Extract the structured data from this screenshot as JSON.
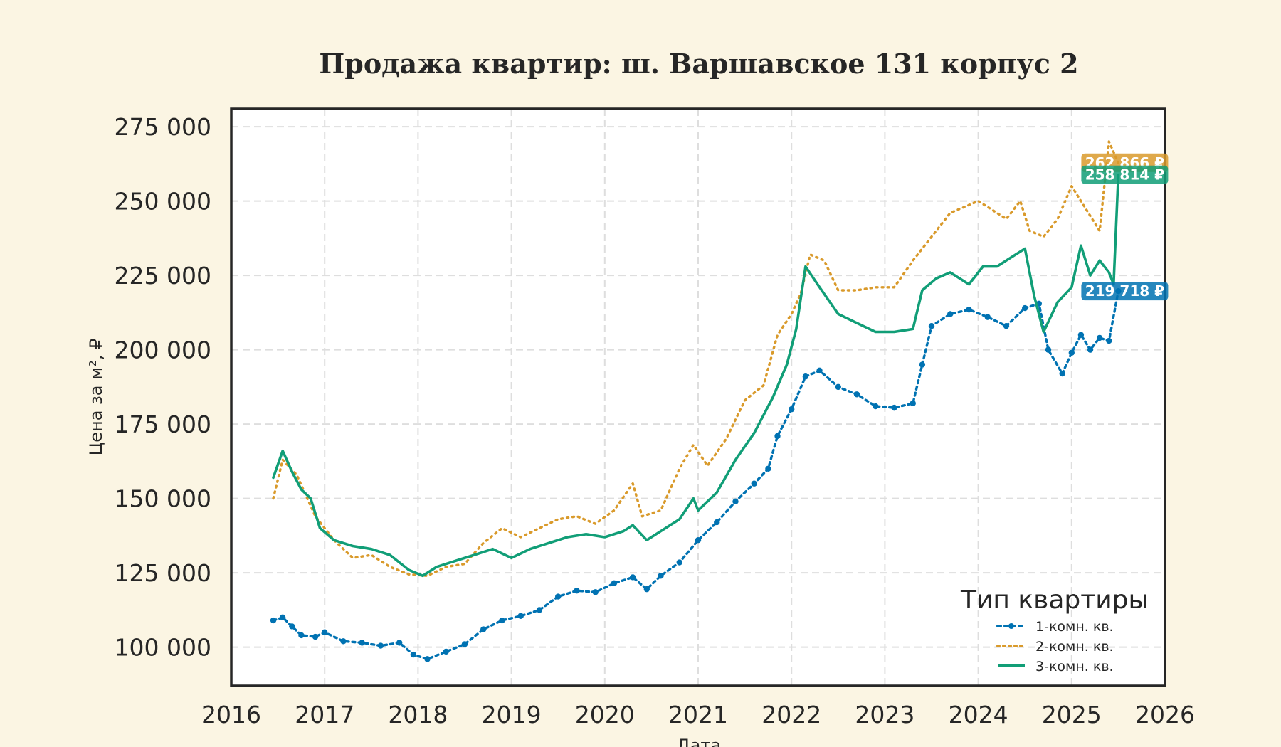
{
  "chart_data": {
    "type": "line",
    "title": "Продажа квартир: ш. Варшавское 131 корпус 2",
    "xlabel": "Дата",
    "ylabel": "Цена за м², ₽",
    "xlim": [
      2016.0,
      2026.0
    ],
    "ylim": [
      87000,
      281000
    ],
    "x_ticks": [
      2016,
      2017,
      2018,
      2019,
      2020,
      2021,
      2022,
      2023,
      2024,
      2025,
      2026
    ],
    "x_tick_labels": [
      "2016",
      "2017",
      "2018",
      "2019",
      "2020",
      "2021",
      "2022",
      "2023",
      "2024",
      "2025",
      "2026"
    ],
    "y_ticks": [
      100000,
      125000,
      150000,
      175000,
      200000,
      225000,
      250000,
      275000
    ],
    "y_tick_labels": [
      "100 000",
      "125 000",
      "150 000",
      "175 000",
      "200 000",
      "225 000",
      "250 000",
      "275 000"
    ],
    "grid": true,
    "legend": {
      "title": "Тип квартиры",
      "placement": "lower-right"
    },
    "series": [
      {
        "name": "1-комн. кв.",
        "color": "#0072b2",
        "style": "dotted-markers",
        "end_label": "219 718 ₽",
        "end_label_value": 219718,
        "x": [
          2016.45,
          2016.55,
          2016.65,
          2016.75,
          2016.9,
          2017.0,
          2017.2,
          2017.4,
          2017.6,
          2017.8,
          2017.95,
          2018.1,
          2018.3,
          2018.5,
          2018.7,
          2018.9,
          2019.1,
          2019.3,
          2019.5,
          2019.7,
          2019.9,
          2020.1,
          2020.3,
          2020.45,
          2020.6,
          2020.8,
          2021.0,
          2021.2,
          2021.4,
          2021.6,
          2021.75,
          2021.85,
          2022.0,
          2022.15,
          2022.3,
          2022.5,
          2022.7,
          2022.9,
          2023.1,
          2023.3,
          2023.4,
          2023.5,
          2023.7,
          2023.9,
          2024.1,
          2024.3,
          2024.5,
          2024.65,
          2024.75,
          2024.9,
          2025.0,
          2025.1,
          2025.2,
          2025.3,
          2025.4,
          2025.5
        ],
        "values": [
          109000,
          110000,
          107000,
          104000,
          103500,
          105000,
          102000,
          101500,
          100500,
          101500,
          97500,
          96000,
          98500,
          101000,
          106000,
          109000,
          110500,
          112500,
          117000,
          119000,
          118500,
          121500,
          123500,
          119500,
          124000,
          128500,
          136000,
          142000,
          149000,
          155000,
          160000,
          171000,
          180000,
          191000,
          193000,
          187500,
          185000,
          181000,
          180500,
          182000,
          195000,
          208000,
          212000,
          213500,
          211000,
          208000,
          214000,
          215500,
          200000,
          192000,
          199000,
          205000,
          200000,
          204000,
          203000,
          219718
        ]
      },
      {
        "name": "2-комн. кв.",
        "color": "#d99a2b",
        "style": "dotted",
        "end_label": "262 866 ₽",
        "end_label_value": 262866,
        "x": [
          2016.45,
          2016.55,
          2016.7,
          2016.9,
          2017.1,
          2017.3,
          2017.5,
          2017.7,
          2017.9,
          2018.1,
          2018.3,
          2018.5,
          2018.7,
          2018.9,
          2019.1,
          2019.3,
          2019.5,
          2019.7,
          2019.9,
          2020.1,
          2020.3,
          2020.4,
          2020.6,
          2020.8,
          2020.95,
          2021.1,
          2021.3,
          2021.5,
          2021.7,
          2021.85,
          2022.0,
          2022.1,
          2022.2,
          2022.35,
          2022.5,
          2022.7,
          2022.9,
          2023.1,
          2023.3,
          2023.5,
          2023.7,
          2023.85,
          2024.0,
          2024.15,
          2024.3,
          2024.45,
          2024.55,
          2024.7,
          2024.85,
          2025.0,
          2025.1,
          2025.2,
          2025.3,
          2025.4,
          2025.5
        ],
        "values": [
          150000,
          163000,
          158000,
          144000,
          136000,
          130000,
          131000,
          127000,
          124500,
          124000,
          127000,
          128000,
          135000,
          140000,
          137000,
          140000,
          143000,
          144000,
          141500,
          146000,
          155000,
          144000,
          146000,
          160000,
          168000,
          161000,
          170000,
          183000,
          188000,
          205000,
          212000,
          219000,
          232000,
          230000,
          220000,
          220000,
          221000,
          221000,
          230000,
          238000,
          246000,
          248000,
          250000,
          247000,
          244000,
          250000,
          240000,
          238000,
          244000,
          255000,
          250000,
          245000,
          240000,
          270000,
          262866
        ]
      },
      {
        "name": "3-комн. кв.",
        "color": "#119e77",
        "style": "solid",
        "end_label": "258 814 ₽",
        "end_label_value": 258814,
        "x": [
          2016.45,
          2016.55,
          2016.65,
          2016.75,
          2016.85,
          2016.95,
          2017.1,
          2017.3,
          2017.5,
          2017.7,
          2017.9,
          2018.05,
          2018.2,
          2018.4,
          2018.6,
          2018.8,
          2019.0,
          2019.2,
          2019.4,
          2019.6,
          2019.8,
          2020.0,
          2020.2,
          2020.3,
          2020.45,
          2020.6,
          2020.8,
          2020.95,
          2021.0,
          2021.2,
          2021.4,
          2021.6,
          2021.8,
          2021.95,
          2022.05,
          2022.15,
          2022.3,
          2022.5,
          2022.7,
          2022.9,
          2023.1,
          2023.3,
          2023.4,
          2023.55,
          2023.7,
          2023.9,
          2024.05,
          2024.2,
          2024.35,
          2024.5,
          2024.6,
          2024.7,
          2024.85,
          2025.0,
          2025.1,
          2025.2,
          2025.3,
          2025.4,
          2025.45,
          2025.5
        ],
        "values": [
          157000,
          166000,
          159000,
          153000,
          150000,
          140000,
          136000,
          134000,
          133000,
          131000,
          126000,
          124000,
          127000,
          129000,
          131000,
          133000,
          130000,
          133000,
          135000,
          137000,
          138000,
          137000,
          139000,
          141000,
          136000,
          139000,
          143000,
          150000,
          146000,
          152000,
          163000,
          172000,
          184000,
          195000,
          207000,
          228000,
          221000,
          212000,
          209000,
          206000,
          206000,
          207000,
          220000,
          224000,
          226000,
          222000,
          228000,
          228000,
          231000,
          234000,
          218000,
          206000,
          216000,
          221000,
          235000,
          225000,
          230000,
          226000,
          222000,
          258814
        ]
      }
    ]
  }
}
